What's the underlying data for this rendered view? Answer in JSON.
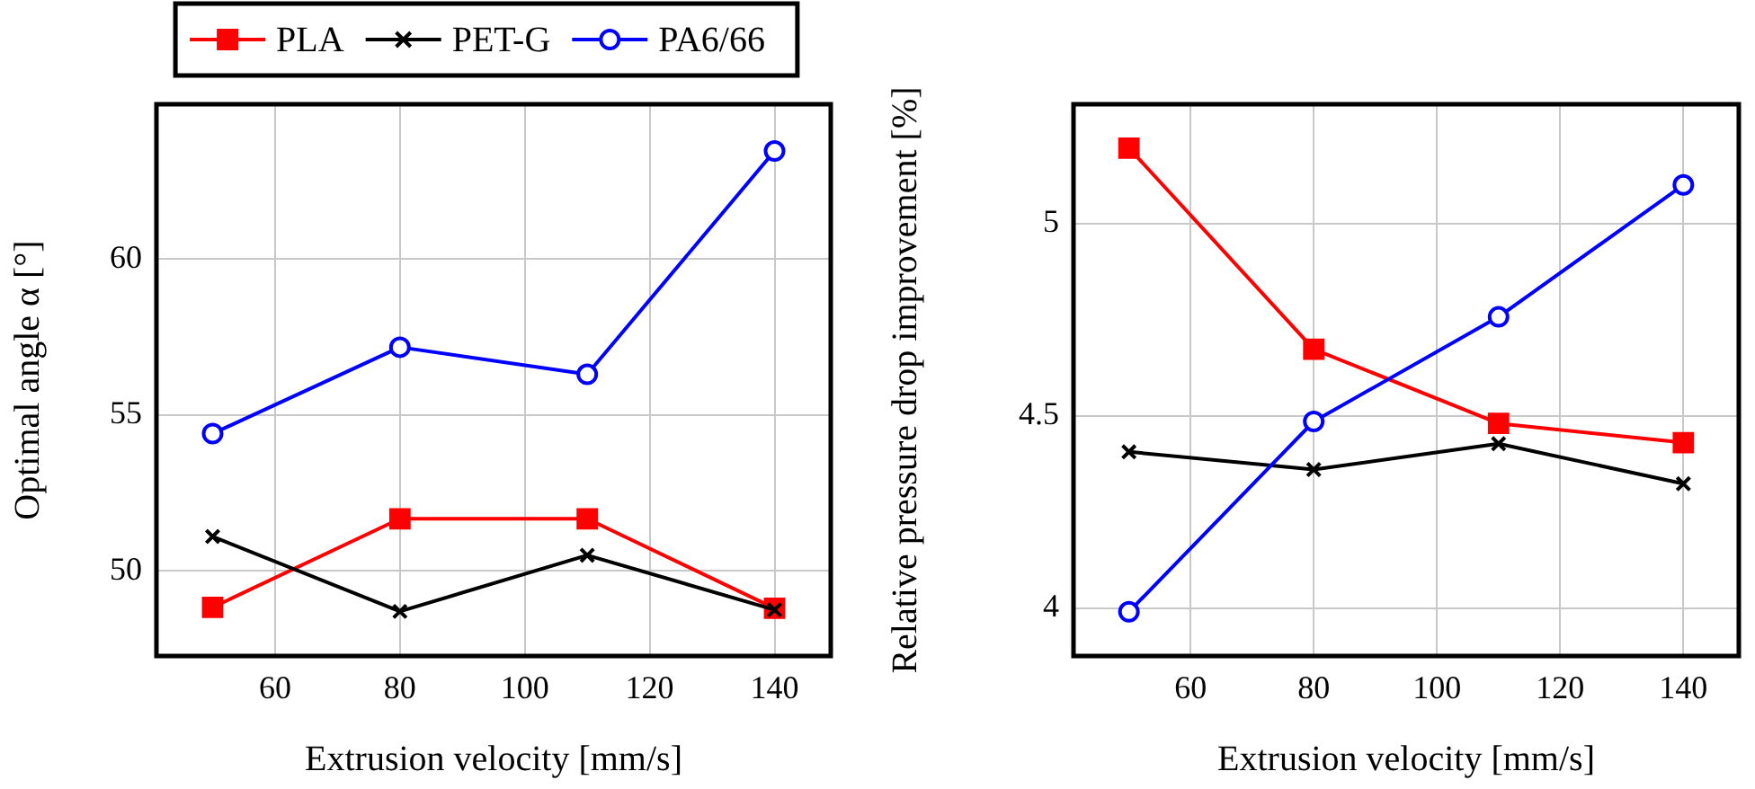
{
  "chart_data": [
    {
      "type": "line",
      "xlabel": "Extrusion velocity [mm/s]",
      "ylabel": "Optimal angle α [°]",
      "x": [
        50,
        80,
        110,
        140
      ],
      "series": [
        {
          "name": "PLA",
          "color": "#ff0000",
          "marker": "square",
          "values": [
            48.83,
            51.67,
            51.67,
            48.8
          ]
        },
        {
          "name": "PET-G",
          "color": "#000000",
          "marker": "cross",
          "values": [
            51.1,
            48.7,
            50.5,
            48.75
          ]
        },
        {
          "name": "PA6/66",
          "color": "#0000ff",
          "marker": "circle",
          "values": [
            54.4,
            57.17,
            56.3,
            63.46
          ]
        }
      ],
      "xlim": [
        41,
        149
      ],
      "xticks": [
        60,
        80,
        100,
        120,
        140
      ],
      "ylim": [
        47.27,
        64.96
      ],
      "yticks": [
        50,
        55,
        60
      ],
      "grid": true,
      "legend": "top"
    },
    {
      "type": "line",
      "xlabel": "Extrusion velocity [mm/s]",
      "ylabel": "Relative pressure drop improvement [%]",
      "x": [
        50,
        80,
        110,
        140
      ],
      "series": [
        {
          "color": "#ff0000",
          "marker": "square",
          "values": [
            5.196,
            4.673,
            4.48,
            4.43
          ]
        },
        {
          "color": "#000000",
          "marker": "cross",
          "values": [
            4.406,
            4.36,
            4.427,
            4.323
          ]
        },
        {
          "color": "#0000ff",
          "marker": "circle",
          "values": [
            3.99,
            4.485,
            4.757,
            5.1
          ]
        }
      ],
      "xlim": [
        41,
        149
      ],
      "xticks": [
        60,
        80,
        100,
        120,
        140
      ],
      "ylim": [
        3.875,
        5.31
      ],
      "yticks": [
        4,
        4.5,
        5
      ],
      "grid": true
    }
  ]
}
